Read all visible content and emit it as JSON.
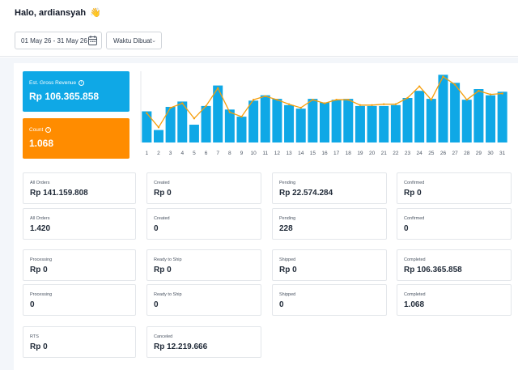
{
  "header": {
    "greeting": "Halo, ardiansyah",
    "wave_emoji": "👋",
    "date_range": "01 May 26 - 31 May 26",
    "sort_label": "Waktu Dibuat"
  },
  "kpis": {
    "revenue": {
      "label": "Est. Gross Revenue",
      "value": "Rp 106.365.858",
      "color": "#0fa8e6"
    },
    "count": {
      "label": "Count",
      "value": "1.068",
      "color": "#ff8c00"
    }
  },
  "cards": [
    {
      "label": "All Orders",
      "value": "Rp 141.159.808"
    },
    {
      "label": "Created",
      "value": "Rp 0"
    },
    {
      "label": "Pending",
      "value": "Rp 22.574.284"
    },
    {
      "label": "Confirmed",
      "value": "Rp 0"
    },
    {
      "label": "All Orders",
      "value": "1.420"
    },
    {
      "label": "Created",
      "value": "0"
    },
    {
      "label": "Pending",
      "value": "228"
    },
    {
      "label": "Confirmed",
      "value": "0"
    },
    {
      "label": "Processing",
      "value": "Rp 0"
    },
    {
      "label": "Ready to Ship",
      "value": "Rp 0"
    },
    {
      "label": "Shipped",
      "value": "Rp 0"
    },
    {
      "label": "Completed",
      "value": "Rp 106.365.858"
    },
    {
      "label": "Processing",
      "value": "0"
    },
    {
      "label": "Ready to Ship",
      "value": "0"
    },
    {
      "label": "Shipped",
      "value": "0"
    },
    {
      "label": "Completed",
      "value": "1.068"
    },
    {
      "label": "RTS",
      "value": "Rp 0"
    },
    {
      "label": "Canceled",
      "value": "Rp 12.219.666"
    }
  ],
  "chart_data": {
    "type": "bar",
    "categories": [
      "1",
      "2",
      "3",
      "4",
      "5",
      "6",
      "7",
      "8",
      "9",
      "10",
      "11",
      "12",
      "13",
      "14",
      "15",
      "16",
      "17",
      "18",
      "19",
      "20",
      "21",
      "22",
      "23",
      "24",
      "25",
      "26",
      "27",
      "28",
      "29",
      "30",
      "31"
    ],
    "series": [
      {
        "values": [
          35,
          14,
          40,
          46,
          20,
          41,
          64,
          37,
          29,
          47,
          53,
          49,
          42,
          38,
          49,
          45,
          48,
          49,
          41,
          41,
          41,
          42,
          50,
          58,
          49,
          76,
          67,
          48,
          60,
          53,
          57
        ],
        "color": "#0fa8e6"
      },
      {
        "values": [
          33,
          17,
          39,
          44,
          27,
          41,
          61,
          34,
          29,
          48,
          52,
          48,
          43,
          39,
          48,
          44,
          48,
          48,
          42,
          42,
          43,
          43,
          50,
          63,
          48,
          74,
          65,
          48,
          58,
          54,
          55
        ],
        "color": "#f59e0b"
      }
    ],
    "ylim": [
      0,
      80
    ],
    "grid": false
  }
}
